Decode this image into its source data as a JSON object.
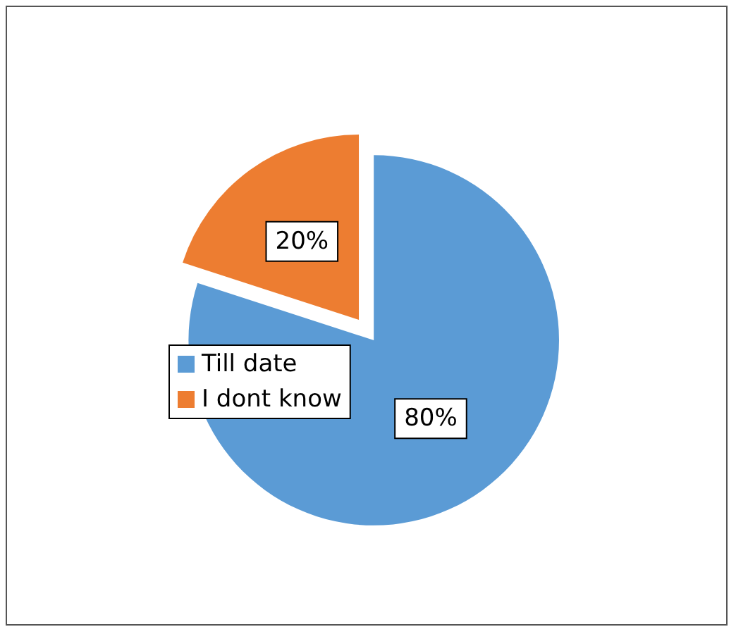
{
  "chart_data": {
    "type": "pie",
    "categories": [
      "Till date",
      "I dont know"
    ],
    "values": [
      80,
      20
    ],
    "colors": [
      "#5b9bd5",
      "#ed7d31"
    ],
    "value_labels": [
      "80%",
      "20%"
    ],
    "legend": "left"
  }
}
